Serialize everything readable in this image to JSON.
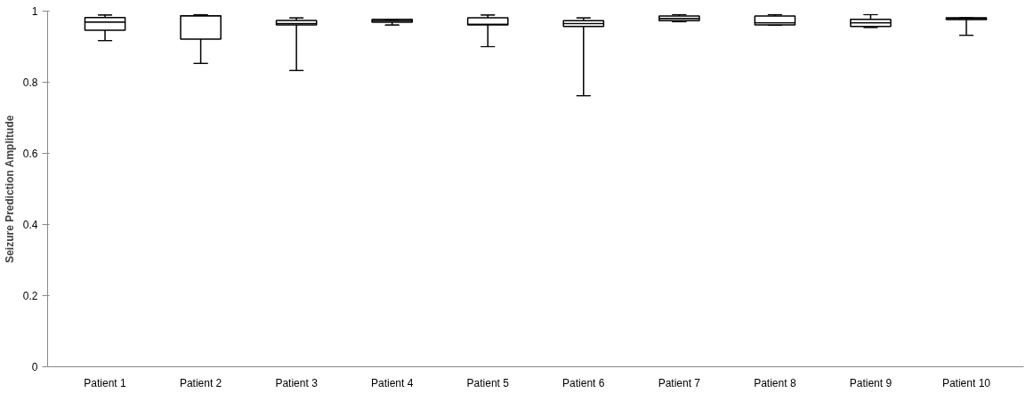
{
  "chart_data": {
    "type": "box",
    "ylabel": "Seizure Prediction Amplitude",
    "categories": [
      "Patient 1",
      "Patient 2",
      "Patient 3",
      "Patient 4",
      "Patient 5",
      "Patient 6",
      "Patient 7",
      "Patient 8",
      "Patient 9",
      "Patient 10"
    ],
    "boxes": [
      {
        "low": 0.917,
        "q1": 0.946,
        "median": 0.969,
        "q3": 0.982,
        "high": 0.989
      },
      {
        "low": 0.853,
        "q1": 0.921,
        "median": 0.987,
        "q3": 0.987,
        "high": 0.99
      },
      {
        "low": 0.833,
        "q1": 0.961,
        "median": 0.965,
        "q3": 0.974,
        "high": 0.981
      },
      {
        "low": 0.961,
        "q1": 0.969,
        "median": 0.973,
        "q3": 0.977,
        "high": 0.977
      },
      {
        "low": 0.9,
        "q1": 0.961,
        "median": 0.963,
        "q3": 0.981,
        "high": 0.989
      },
      {
        "low": 0.762,
        "q1": 0.957,
        "median": 0.965,
        "q3": 0.973,
        "high": 0.981
      },
      {
        "low": 0.97,
        "q1": 0.973,
        "median": 0.979,
        "q3": 0.986,
        "high": 0.99
      },
      {
        "low": 0.96,
        "q1": 0.961,
        "median": 0.967,
        "q3": 0.986,
        "high": 0.99
      },
      {
        "low": 0.954,
        "q1": 0.957,
        "median": 0.967,
        "q3": 0.977,
        "high": 0.99
      },
      {
        "low": 0.932,
        "q1": 0.976,
        "median": 0.979,
        "q3": 0.981,
        "high": 0.981
      }
    ],
    "color": "#000000",
    "ylim": [
      0,
      1
    ],
    "yticks": [
      0,
      0.2,
      0.4,
      0.6,
      0.8,
      1
    ],
    "grid": false
  }
}
